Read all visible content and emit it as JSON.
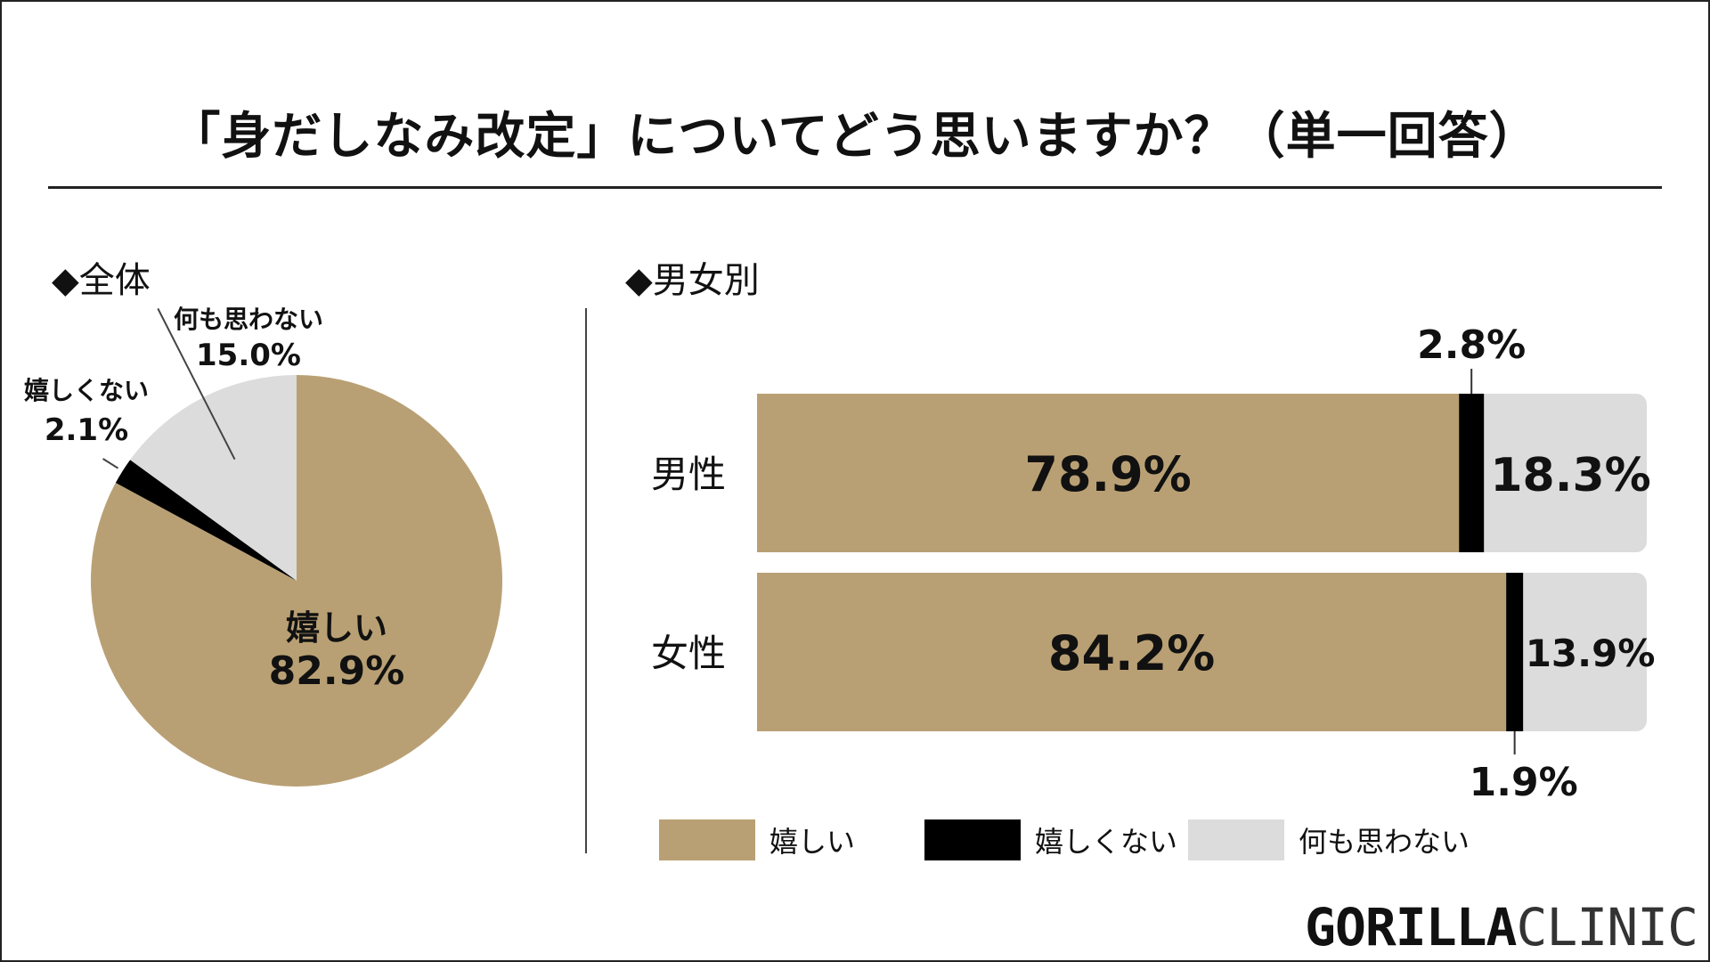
{
  "title": "「身だしなみ改定」についてどう思いますか？（単一回答）",
  "sections": {
    "overall_label": "◆全体",
    "gender_label": "◆男女別"
  },
  "colors": {
    "ureshii": "#B9A074",
    "ureshikunai": "#000000",
    "nanimo": "#DCDCDC"
  },
  "chart_data": [
    {
      "type": "pie",
      "title": "◆全体",
      "slices": [
        {
          "name": "嬉しい",
          "value": 82.9,
          "label": "82.9%"
        },
        {
          "name": "嬉しくない",
          "value": 2.1,
          "label": "2.1%"
        },
        {
          "name": "何も思わない",
          "value": 15.0,
          "label": "15.0%"
        }
      ]
    },
    {
      "type": "bar",
      "orientation": "horizontal",
      "stacked": true,
      "title": "◆男女別",
      "categories": [
        "男性",
        "女性"
      ],
      "series": [
        {
          "name": "嬉しい",
          "values": [
            78.9,
            84.2
          ],
          "labels": [
            "78.9%",
            "84.2%"
          ]
        },
        {
          "name": "嬉しくない",
          "values": [
            2.8,
            1.9
          ],
          "labels": [
            "2.8%",
            "1.9%"
          ]
        },
        {
          "name": "何も思わない",
          "values": [
            18.3,
            13.9
          ],
          "labels": [
            "18.3%",
            "13.9%"
          ]
        }
      ],
      "legend": "bottom"
    }
  ],
  "legend": [
    {
      "label": "嬉しい"
    },
    {
      "label": "嬉しくない"
    },
    {
      "label": "何も思わない"
    }
  ],
  "logo": {
    "bold": "GORILLA",
    "light": "CLINIC"
  }
}
